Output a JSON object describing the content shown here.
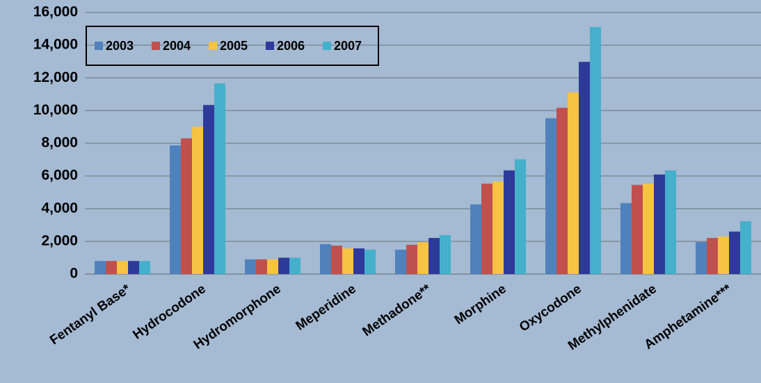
{
  "chart_data": {
    "type": "bar",
    "categories": [
      "Fentanyl Base*",
      "Hydrocodone",
      "Hydromorphone",
      "Meperidine",
      "Methadone**",
      "Morphine",
      "Oxycodone",
      "Methylphenidate",
      "Amphetamine***"
    ],
    "series": [
      {
        "name": "2003",
        "color": "#4f81bd",
        "values": [
          800,
          7870,
          900,
          1830,
          1490,
          4260,
          9530,
          4340,
          1960
        ]
      },
      {
        "name": "2004",
        "color": "#c0504d",
        "values": [
          800,
          8300,
          900,
          1740,
          1790,
          5530,
          10170,
          5450,
          2210
        ]
      },
      {
        "name": "2005",
        "color": "#f6c342",
        "values": [
          800,
          9020,
          900,
          1570,
          1960,
          5660,
          11110,
          5530,
          2300
        ]
      },
      {
        "name": "2006",
        "color": "#2e3a9a",
        "values": [
          800,
          10340,
          1000,
          1570,
          2210,
          6340,
          12980,
          6090,
          2600
        ]
      },
      {
        "name": "2007",
        "color": "#45b0cb",
        "values": [
          800,
          11660,
          1000,
          1490,
          2380,
          7020,
          15110,
          6340,
          3230
        ]
      }
    ],
    "ylim": [
      0,
      16000
    ],
    "yticks": [
      0,
      {
        "value": 2000,
        "label": "2,000"
      },
      {
        "value": 4000,
        "label": "4,000"
      },
      {
        "value": 6000,
        "label": "6,000"
      },
      {
        "value": 8000,
        "label": "8,000"
      },
      {
        "value": 10000,
        "label": "10,000"
      },
      {
        "value": 12000,
        "label": "12,000"
      },
      {
        "value": 14000,
        "label": "14,000"
      },
      {
        "value": 16000,
        "label": "16,000"
      }
    ],
    "grid": true,
    "legend": "top-left"
  }
}
